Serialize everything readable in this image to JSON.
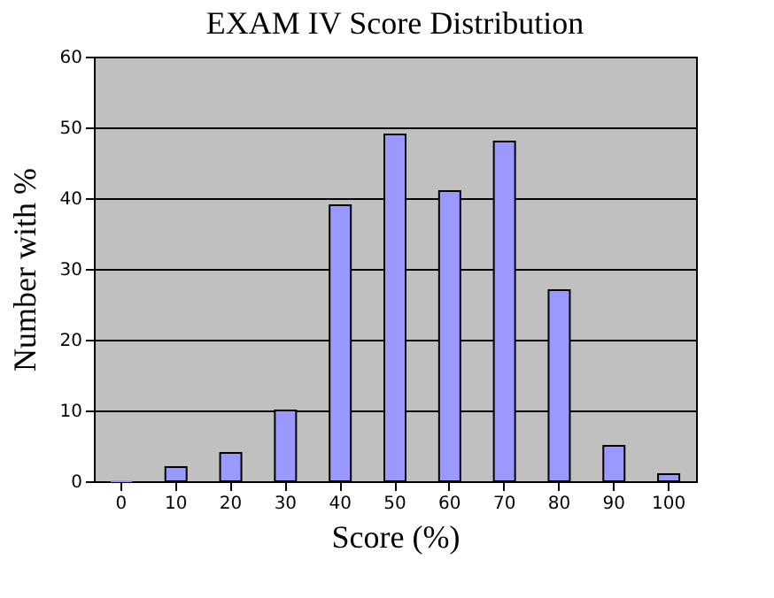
{
  "chart_data": {
    "type": "bar",
    "title": "EXAM IV Score Distribution",
    "xlabel": "Score (%)",
    "ylabel": "Number with %",
    "categories": [
      "0",
      "10",
      "20",
      "30",
      "40",
      "50",
      "60",
      "70",
      "80",
      "90",
      "100"
    ],
    "values": [
      0,
      2,
      4,
      10,
      39,
      49,
      41,
      48,
      27,
      5,
      1
    ],
    "color": "#9999ff",
    "ylim": [
      0,
      60
    ],
    "yticks": [
      0,
      10,
      20,
      30,
      40,
      50,
      60
    ],
    "grid": "y"
  }
}
